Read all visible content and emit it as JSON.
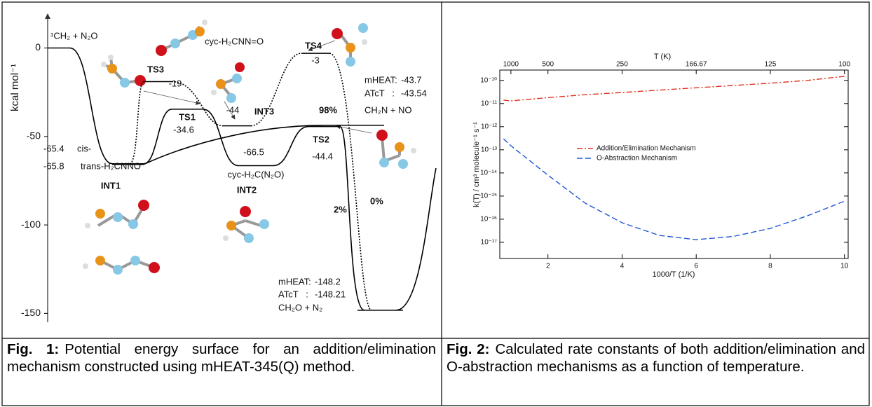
{
  "chart_data": [
    {
      "type": "energy-profile",
      "ylabel": "kcal mol⁻¹",
      "ylim": [
        -155,
        20
      ],
      "yticks": [
        0,
        -50,
        -100,
        -150
      ],
      "levels": [
        {
          "species": "¹CH₂ + N₂O",
          "value": 0
        },
        {
          "species": "cis-",
          "value": -65.4
        },
        {
          "species": "trans-H₂CNNO",
          "state": "INT1",
          "value": -65.8
        },
        {
          "state": "TS1",
          "value": -34.6
        },
        {
          "state": "TS3",
          "value": -19
        },
        {
          "state": "INT3",
          "species": "cyc-H₂CNN=O",
          "value": -44
        },
        {
          "state": "TS4",
          "value": -3
        },
        {
          "state": "INT2",
          "species": "cyc-H₂C(N₂O)",
          "value": -66.5
        },
        {
          "state": "TS2",
          "value": -44.4
        },
        {
          "species": "CH₂N + NO",
          "energies": [
            {
              "method": "mHEAT:",
              "value": -43.7
            },
            {
              "method": "ATcT   :",
              "value": -43.54
            }
          ]
        },
        {
          "species": "CH₂O + N₂",
          "energies": [
            {
              "method": "mHEAT:",
              "value": -148.2
            },
            {
              "method": "ATcT   :",
              "value": -148.21
            }
          ]
        }
      ],
      "branching_ratios": {
        "values": [
          98,
          2,
          0
        ],
        "value_labels": [
          "98%",
          "2%",
          "0%"
        ]
      }
    },
    {
      "type": "line",
      "xlabel": "1000/T (1/K)",
      "ylabel": "k(T) / cm³ molecule⁻¹ s⁻¹",
      "x2label": "T (K)",
      "xlim": [
        0.7,
        10.1
      ],
      "xticks": [
        2,
        4,
        6,
        8,
        10
      ],
      "x2ticks": [
        {
          "value": 1,
          "label": "1000"
        },
        {
          "value": 2,
          "label": "500"
        },
        {
          "value": 4,
          "label": "250"
        },
        {
          "value": 6,
          "label": "166.67"
        },
        {
          "value": 8,
          "label": "125"
        },
        {
          "value": 10,
          "label": "100"
        }
      ],
      "log_y": true,
      "ylim": [
        2e-18,
        2.8e-10
      ],
      "yticks": [
        {
          "value": 1e-10,
          "label": "10⁻¹⁰"
        },
        {
          "value": 1e-11,
          "label": "10⁻¹¹"
        },
        {
          "value": 1e-12,
          "label": "10⁻¹²"
        },
        {
          "value": 1e-13,
          "label": "10⁻¹³"
        },
        {
          "value": 1e-14,
          "label": "10⁻¹⁴"
        },
        {
          "value": 1e-15,
          "label": "10⁻¹⁵"
        },
        {
          "value": 1e-16,
          "label": "10⁻¹⁶"
        },
        {
          "value": 1e-17,
          "label": "10⁻¹⁷"
        }
      ],
      "legend": "center-left",
      "x": [
        0.8,
        1,
        2,
        3,
        4,
        5,
        6,
        7,
        8,
        9,
        10
      ],
      "series": [
        {
          "name": "Addition/Elimination Mechanism",
          "color": "#e0301e",
          "dash": "dash-dot",
          "values": [
            1.4e-11,
            1.3e-11,
            1.8e-11,
            2.4e-11,
            3e-11,
            3.8e-11,
            4.8e-11,
            6e-11,
            7.6e-11,
            1e-10,
            1.5e-10
          ]
        },
        {
          "name": "O-Abstraction Mechanism",
          "color": "#1f55d6",
          "dash": "dashed",
          "values": [
            3e-13,
            1.5e-13,
            8e-15,
            5e-16,
            7e-17,
            2e-17,
            1.3e-17,
            1.8e-17,
            4e-17,
            1.4e-16,
            6e-16
          ]
        }
      ]
    }
  ],
  "captions": [
    {
      "label": "Fig. 1:",
      "text": "Potential energy surface for an addition/elimination mechanism constructed using mHEAT-345(Q) method."
    },
    {
      "label": "Fig. 2:",
      "text": "Calculated rate constants of both addition/elimination and O-abstraction mechanisms as a function of temperature."
    }
  ]
}
